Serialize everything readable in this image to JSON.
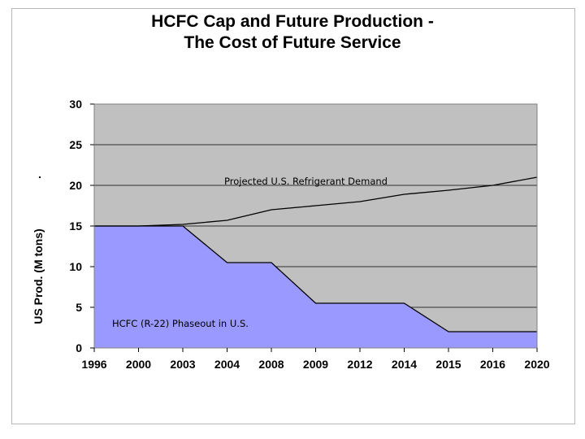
{
  "chart_data": {
    "type": "area",
    "title_line1": "HCFC Cap and Future Production -",
    "title_line2": "The Cost of Future Service",
    "ylabel": "US Prod. (M tons)",
    "stray_mark": ".",
    "ylim": [
      0,
      30
    ],
    "yticks": [
      0,
      5,
      10,
      15,
      20,
      25,
      30
    ],
    "yticks_text": [
      "0",
      "5",
      "10",
      "15",
      "20",
      "25",
      "30"
    ],
    "categories": [
      "1996",
      "2000",
      "2003",
      "2004",
      "2008",
      "2009",
      "2012",
      "2014",
      "2015",
      "2016",
      "2020"
    ],
    "grid": true,
    "series": [
      {
        "name": "Projected U.S. Refrigerant Demand",
        "values": [
          15,
          15,
          15.2,
          15.7,
          17,
          17.5,
          18,
          18.9,
          19.4,
          20,
          21
        ],
        "color": "#000000"
      },
      {
        "name": "HCFC (R-22) Phaseout in U.S.",
        "values": [
          15,
          15,
          15,
          10.5,
          10.5,
          5.5,
          5.5,
          5.5,
          2,
          2,
          2
        ],
        "color": "#9999ff"
      }
    ],
    "plot_background": "#c0c0c0",
    "annotations": [
      {
        "text": "Projected U.S. Refrigerant Demand"
      },
      {
        "text": "HCFC (R-22) Phaseout in U.S."
      }
    ]
  }
}
